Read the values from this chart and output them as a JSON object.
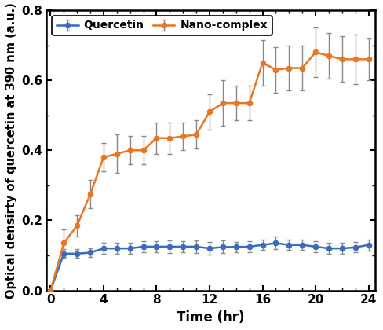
{
  "quercetin_x": [
    0,
    1,
    2,
    3,
    4,
    5,
    6,
    7,
    8,
    9,
    10,
    11,
    12,
    13,
    14,
    15,
    16,
    17,
    18,
    19,
    20,
    21,
    22,
    23,
    24
  ],
  "quercetin_y": [
    0.0,
    0.105,
    0.105,
    0.108,
    0.12,
    0.12,
    0.12,
    0.125,
    0.125,
    0.125,
    0.125,
    0.125,
    0.12,
    0.124,
    0.124,
    0.125,
    0.13,
    0.135,
    0.13,
    0.13,
    0.125,
    0.12,
    0.12,
    0.123,
    0.13
  ],
  "quercetin_err": [
    0.0,
    0.012,
    0.012,
    0.012,
    0.015,
    0.015,
    0.015,
    0.015,
    0.015,
    0.018,
    0.015,
    0.018,
    0.018,
    0.018,
    0.015,
    0.015,
    0.015,
    0.018,
    0.015,
    0.015,
    0.015,
    0.015,
    0.015,
    0.015,
    0.016
  ],
  "nano_x": [
    0,
    1,
    2,
    3,
    4,
    5,
    6,
    7,
    8,
    9,
    10,
    11,
    12,
    13,
    14,
    15,
    16,
    17,
    18,
    19,
    20,
    21,
    22,
    23,
    24
  ],
  "nano_y": [
    0.0,
    0.135,
    0.185,
    0.275,
    0.38,
    0.39,
    0.4,
    0.4,
    0.435,
    0.435,
    0.44,
    0.445,
    0.51,
    0.535,
    0.535,
    0.535,
    0.65,
    0.63,
    0.635,
    0.635,
    0.68,
    0.67,
    0.66,
    0.66,
    0.66
  ],
  "nano_err": [
    0.0,
    0.04,
    0.03,
    0.04,
    0.04,
    0.055,
    0.04,
    0.04,
    0.045,
    0.045,
    0.04,
    0.04,
    0.05,
    0.065,
    0.05,
    0.05,
    0.065,
    0.065,
    0.065,
    0.065,
    0.07,
    0.065,
    0.065,
    0.07,
    0.06
  ],
  "quercetin_color": "#3A6BBE",
  "nano_color": "#E87722",
  "error_color": "#888888",
  "xlabel": "Time (hr)",
  "ylabel": "Optical densirty of quercetin at 390 nm (a.u.)",
  "xlim": [
    -0.3,
    24.5
  ],
  "ylim": [
    0,
    0.8
  ],
  "xticks": [
    0,
    4,
    8,
    12,
    16,
    20,
    24
  ],
  "yticks": [
    0,
    0.2,
    0.4,
    0.6,
    0.8
  ],
  "legend_quercetin": "Quercetin",
  "legend_nano": "Nano-complex",
  "figsize": [
    4.88,
    4.2
  ],
  "dpi": 100
}
